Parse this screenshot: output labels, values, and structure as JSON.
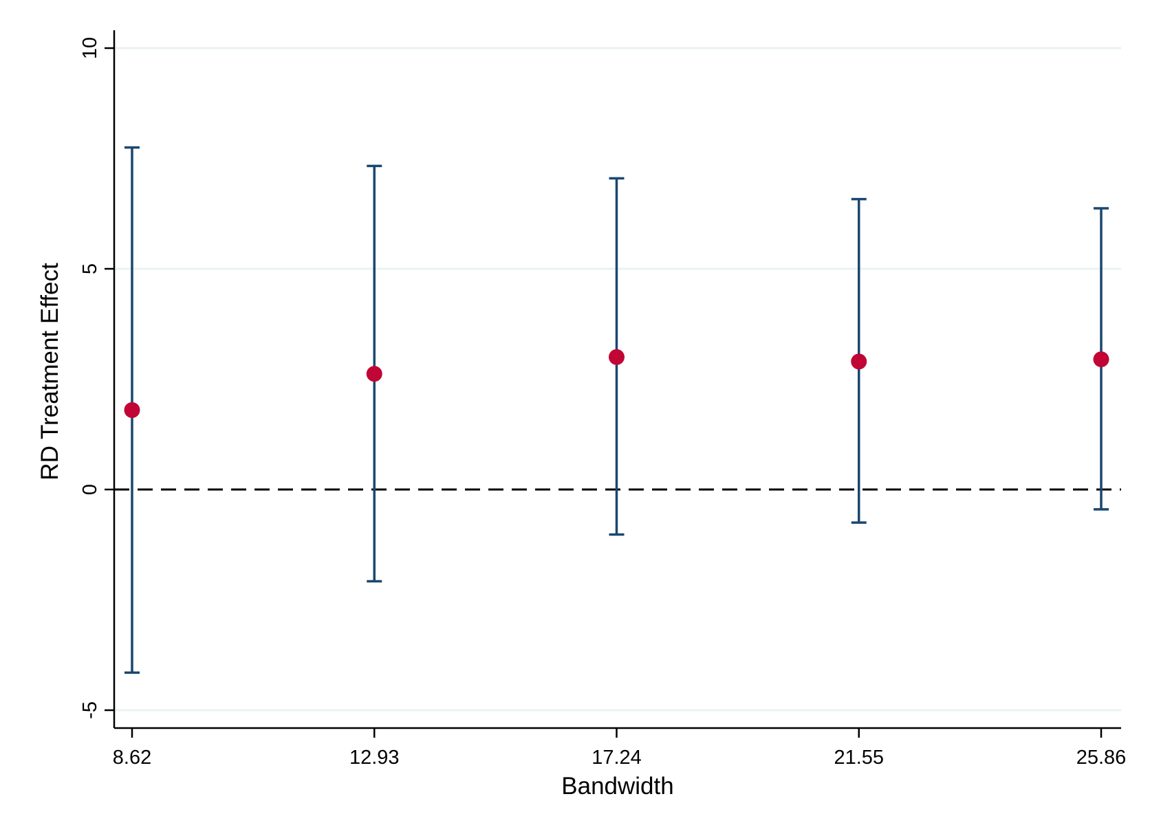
{
  "chart_data": {
    "type": "scatter",
    "xlabel": "Bandwidth",
    "ylabel": "RD Treatment Effect",
    "categories": [
      "8.62",
      "12.93",
      "17.24",
      "21.55",
      "25.86"
    ],
    "points": [
      {
        "x": "8.62",
        "estimate": 1.8,
        "ci_low": -4.15,
        "ci_high": 7.75
      },
      {
        "x": "12.93",
        "estimate": 2.62,
        "ci_low": -2.08,
        "ci_high": 7.33
      },
      {
        "x": "17.24",
        "estimate": 3.0,
        "ci_low": -1.02,
        "ci_high": 7.05
      },
      {
        "x": "21.55",
        "estimate": 2.9,
        "ci_low": -0.75,
        "ci_high": 6.58
      },
      {
        "x": "25.86",
        "estimate": 2.95,
        "ci_low": -0.45,
        "ci_high": 6.37
      }
    ],
    "yticks": [
      -5,
      0,
      5,
      10
    ],
    "ytick_labels": [
      "-5",
      "0",
      "5",
      "10"
    ],
    "ylim": [
      -5.45,
      10.45
    ],
    "reference_line": {
      "y": 0,
      "style": "dashed"
    },
    "grid": true,
    "colors": {
      "marker": "#C10534",
      "ci": "#1A476F",
      "grid": "#EAF2F3",
      "reference": "#000000",
      "axis": "#000000"
    }
  }
}
